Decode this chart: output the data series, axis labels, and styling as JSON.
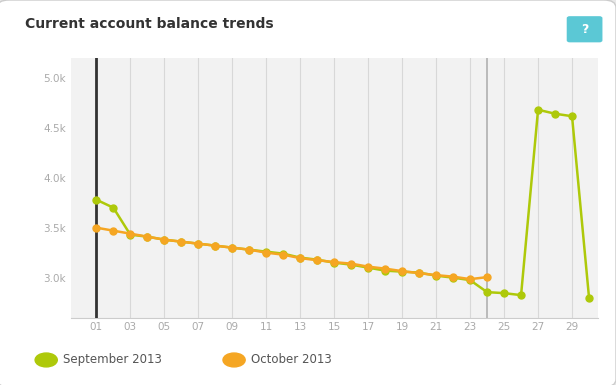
{
  "title": "Current account balance trends",
  "bg_outer": "#e8e8e8",
  "chart_bg": "#f2f2f2",
  "title_color": "#333333",
  "grid_color": "#d8d8d8",
  "ylim": [
    2600,
    5200
  ],
  "yticks": [
    3000,
    3500,
    4000,
    4500,
    5000
  ],
  "ytick_labels": [
    "3.0k",
    "3.5k",
    "4.0k",
    "4.5k",
    "5.0k"
  ],
  "xticks": [
    1,
    3,
    5,
    7,
    9,
    11,
    13,
    15,
    17,
    19,
    21,
    23,
    25,
    27,
    29
  ],
  "xtick_labels": [
    "01",
    "03",
    "05",
    "07",
    "09",
    "11",
    "13",
    "15",
    "17",
    "19",
    "21",
    "23",
    "25",
    "27",
    "29"
  ],
  "xlim": [
    -0.5,
    30.5
  ],
  "tooltip_oct_border": "#f5a623",
  "tooltip_sep_border": "#8cb800",
  "sept_color": "#aec90a",
  "oct_color": "#f5a623",
  "sept_lw": 1.8,
  "oct_lw": 1.8,
  "marker_size": 5,
  "sept_x": [
    1,
    2,
    3,
    4,
    5,
    6,
    7,
    8,
    9,
    10,
    11,
    12,
    13,
    14,
    15,
    16,
    17,
    18,
    19,
    20,
    21,
    22,
    23,
    24,
    25,
    26,
    27,
    28,
    29,
    30
  ],
  "sept_y": [
    3780,
    3700,
    3430,
    3410,
    3380,
    3360,
    3340,
    3320,
    3300,
    3280,
    3260,
    3240,
    3200,
    3180,
    3150,
    3130,
    3100,
    3070,
    3060,
    3050,
    3020,
    3000,
    2975,
    2855,
    2845,
    2825,
    4680,
    4640,
    4615,
    2800
  ],
  "oct_x": [
    1,
    2,
    3,
    4,
    5,
    6,
    7,
    8,
    9,
    10,
    11,
    12,
    13,
    14,
    15,
    16,
    17,
    18,
    19,
    20,
    21,
    22,
    23,
    24
  ],
  "oct_y": [
    3500,
    3470,
    3440,
    3410,
    3380,
    3360,
    3340,
    3320,
    3300,
    3280,
    3250,
    3230,
    3195,
    3175,
    3155,
    3140,
    3110,
    3090,
    3065,
    3045,
    3025,
    3010,
    2985,
    3005
  ],
  "legend_labels": [
    "September 2013",
    "October 2013"
  ],
  "legend_colors": [
    "#aec90a",
    "#f5a623"
  ],
  "help_btn_color": "#5bc8d5",
  "help_btn_text": "?",
  "vertical_line_x": 24,
  "left_spine_x": 1
}
